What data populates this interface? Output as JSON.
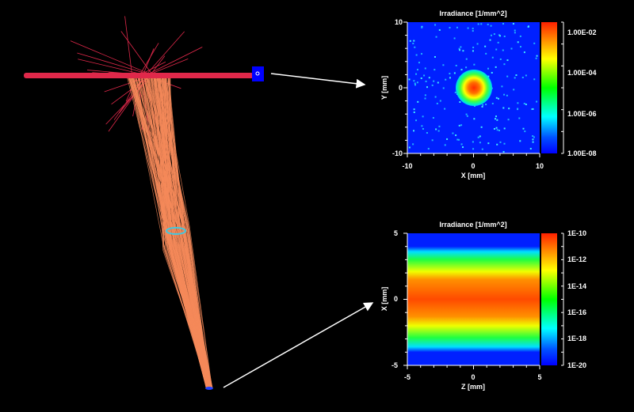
{
  "colors": {
    "background": "#000000",
    "beam": "#e0284a",
    "rays": "#f58a5a",
    "detector": "#0000ff",
    "ring": "#40c8e0",
    "arrow": "#ffffff"
  },
  "plots": [
    {
      "title": "Irradiance [1/mm^2]",
      "xlabel": "X [mm]",
      "ylabel": "Y [mm]",
      "xticks": [
        "-10",
        "0",
        "10"
      ],
      "yticks": [
        "10",
        "0",
        "-10"
      ],
      "xlim": [
        -10,
        10
      ],
      "ylim": [
        -10,
        10
      ],
      "colorbar_ticks": [
        "1.00E-02",
        "1.00E-04",
        "1.00E-06",
        "1.00E-08"
      ],
      "colorbar_range": [
        "1E-08",
        "~3E-02"
      ],
      "colorbar_scale": "log",
      "colormap": "jet"
    },
    {
      "title": "Irradiance [1/mm^2]",
      "xlabel": "Z [mm]",
      "ylabel": "X [mm]",
      "xticks": [
        "-5",
        "0",
        "5"
      ],
      "yticks": [
        "5",
        "0",
        "-5"
      ],
      "xlim": [
        -5,
        5
      ],
      "ylim": [
        -5,
        5
      ],
      "colorbar_ticks": [
        "1E-10",
        "1E-12",
        "1E-14",
        "1E-16",
        "1E-18",
        "1E-20"
      ],
      "colorbar_range": [
        "1E-20",
        "1E-10"
      ],
      "colorbar_scale": "log",
      "colormap": "jet"
    }
  ]
}
